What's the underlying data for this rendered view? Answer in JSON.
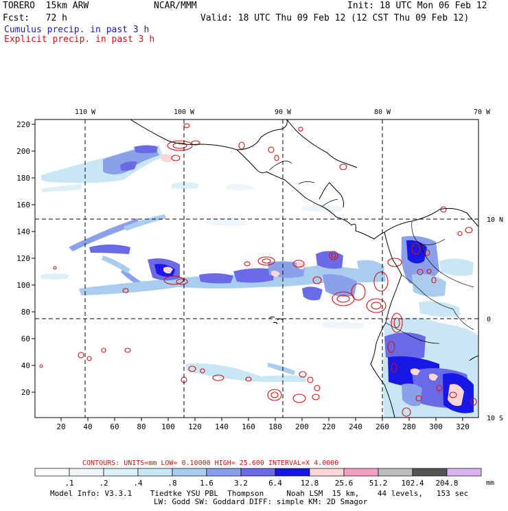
{
  "header": {
    "model": "TORERO  15km ARW",
    "center": "NCAR/MMM",
    "init": "Init: 18 UTC Mon 06 Feb 12",
    "fcst": "Fcst:   72 h",
    "valid": "Valid: 18 UTC Thu 09 Feb 12 (12 CST Thu 09 Feb 12)",
    "field1": "Cumulus precip. in past 3 h",
    "field2": "Explicit precip. in past 3 h"
  },
  "colors": {
    "field1": "#1a1aa6",
    "field2": "#d01010",
    "grid": "#000000"
  },
  "map": {
    "lon_labels": [
      "110 W",
      "100 W",
      "90 W",
      "80 W",
      "70 W"
    ],
    "lat_labels": [
      "10 N",
      "0",
      "10 S"
    ],
    "y_ticks": [
      "220",
      "200",
      "180",
      "160",
      "140",
      "120",
      "100",
      "80",
      "60",
      "40",
      "20"
    ],
    "x_ticks": [
      "20",
      "40",
      "60",
      "80",
      "100",
      "120",
      "140",
      "160",
      "180",
      "200",
      "220",
      "240",
      "260",
      "280",
      "300",
      "320"
    ]
  },
  "contours": {
    "units": "CONTOURS:  UNITS=mm  LOW= 0.10000      HIGH=  25.600      INTERVAL=X  4.0000"
  },
  "legend": {
    "labels": [
      ".1",
      ".2",
      ".4",
      ".8",
      "1.6",
      "3.2",
      "6.4",
      "12.8",
      "25.6",
      "51.2",
      "102.4",
      "204.8"
    ],
    "unit": "mm",
    "colors": [
      "#ffffff",
      "#eef6fb",
      "#ddf0f8",
      "#c8e6f4",
      "#a8cdee",
      "#8aa0ea",
      "#6a6ae6",
      "#1818e6",
      "#ffd6d8",
      "#f4a0c4",
      "#bbbbbb",
      "#555555",
      "#d8b4f4"
    ]
  },
  "footer": {
    "line1": "Model Info: V3.3.1    Tiedtke YSU PBL  Thompson     Noah LSM  15 km,    44 levels,   153 sec",
    "line2": "LW: Godd SW: Goddard DIFF: simple KM: 2D Smagor"
  }
}
